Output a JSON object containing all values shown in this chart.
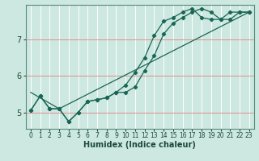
{
  "xlabel": "Humidex (Indice chaleur)",
  "bg_color": "#cce8e0",
  "grid_color_major": "#e8a0a0",
  "grid_color_minor": "#ffffff",
  "line_color": "#1a6655",
  "xlim": [
    -0.5,
    23.5
  ],
  "ylim": [
    4.55,
    7.95
  ],
  "xticks": [
    0,
    1,
    2,
    3,
    4,
    5,
    6,
    7,
    8,
    9,
    10,
    11,
    12,
    13,
    14,
    15,
    16,
    17,
    18,
    19,
    20,
    21,
    22,
    23
  ],
  "yticks": [
    5,
    6,
    7
  ],
  "line1_x": [
    0,
    1,
    2,
    3,
    4,
    5,
    6,
    7,
    8,
    9,
    10,
    11,
    12,
    13,
    14,
    15,
    16,
    17,
    18,
    19,
    20,
    21,
    22,
    23
  ],
  "line1_y": [
    5.05,
    5.45,
    5.1,
    5.1,
    4.75,
    5.0,
    5.3,
    5.35,
    5.4,
    5.55,
    5.55,
    5.7,
    6.15,
    6.55,
    7.15,
    7.45,
    7.6,
    7.75,
    7.85,
    7.75,
    7.55,
    7.55,
    7.75,
    7.75
  ],
  "line2_x": [
    0,
    1,
    2,
    3,
    4,
    5,
    6,
    7,
    8,
    9,
    10,
    11,
    12,
    13,
    14,
    15,
    16,
    17,
    18,
    19,
    20,
    21,
    22,
    23
  ],
  "line2_y": [
    5.05,
    5.45,
    5.1,
    5.1,
    4.75,
    5.0,
    5.3,
    5.35,
    5.4,
    5.55,
    5.75,
    6.1,
    6.5,
    7.1,
    7.5,
    7.6,
    7.75,
    7.85,
    7.6,
    7.55,
    7.55,
    7.75,
    7.75,
    7.75
  ],
  "line3_x": [
    0,
    3,
    23
  ],
  "line3_y": [
    5.55,
    5.1,
    7.75
  ],
  "tick_color": "#1a4a3a",
  "spine_color": "#5a8a7a",
  "xlabel_fontsize": 7,
  "tick_fontsize_x": 5.5,
  "tick_fontsize_y": 7
}
